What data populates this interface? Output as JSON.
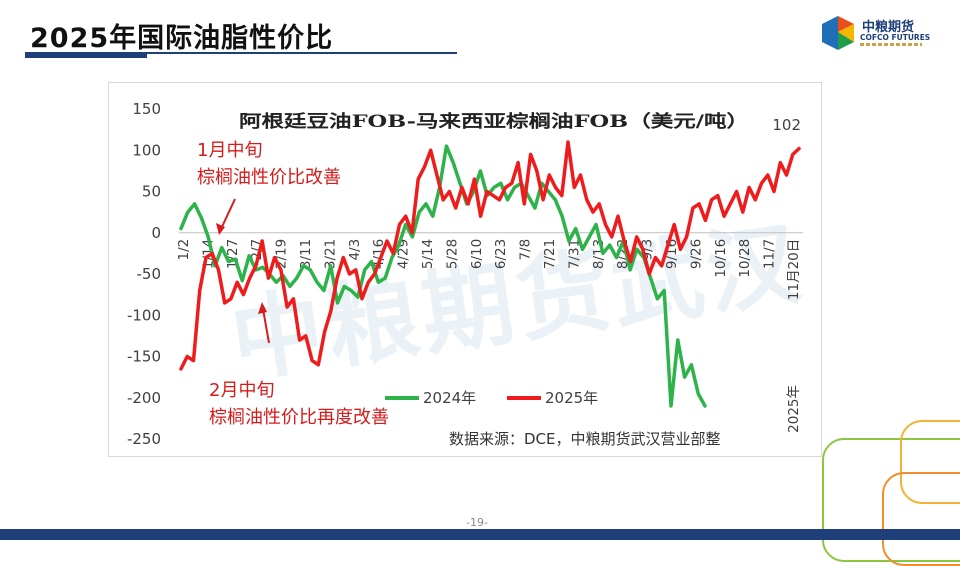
{
  "slide": {
    "title": "2025年国际油脂性价比",
    "page_number": "-19-"
  },
  "logo": {
    "cn": "中粮期货",
    "en": "COFCO FUTURES",
    "colors": [
      "#e94e1b",
      "#f7b500",
      "#1f9e4a",
      "#1f6fb8"
    ]
  },
  "colors": {
    "series_2024": "#2eb34a",
    "series_2025": "#ee1c1c",
    "annotation": "#d71a1a",
    "brand": "#1f3f7a"
  },
  "chart_data": {
    "type": "line",
    "title": "阿根廷豆油FOB-马来西亚棕榈油FOB（美元/吨）",
    "ylim": [
      -250,
      150
    ],
    "yticks": [
      150,
      100,
      50,
      0,
      -50,
      -100,
      -150,
      -200,
      -250
    ],
    "x_tick_labels": [
      "1/2",
      "1/14",
      "1/27",
      "2/7",
      "2/19",
      "3/11",
      "3/21",
      "4/3",
      "4/16",
      "4/29",
      "5/14",
      "5/28",
      "6/10",
      "6/23",
      "7/8",
      "7/21",
      "7/31",
      "8/13",
      "8/22",
      "9/3",
      "9/16",
      "9/26",
      "10/16",
      "10/28",
      "11/7",
      "11月20日"
    ],
    "year_label": "2025年",
    "last_value_label": "102",
    "series": [
      {
        "name": "2024年",
        "values": [
          5,
          25,
          35,
          18,
          -5,
          -40,
          -18,
          -35,
          -32,
          -58,
          -28,
          -45,
          -42,
          -50,
          -60,
          -52,
          -65,
          -55,
          -40,
          -45,
          -60,
          -70,
          -40,
          -85,
          -65,
          -70,
          -78,
          -45,
          -35,
          -60,
          -55,
          -30,
          -15,
          10,
          -5,
          25,
          35,
          20,
          55,
          105,
          85,
          60,
          35,
          50,
          75,
          45,
          55,
          60,
          40,
          55,
          60,
          45,
          30,
          60,
          50,
          40,
          20,
          -10,
          5,
          -20,
          -5,
          10,
          -25,
          -15,
          -30,
          -10,
          -45,
          -20,
          -30,
          -55,
          -80,
          -70,
          -210,
          -130,
          -175,
          -160,
          -195,
          -210
        ]
      },
      {
        "name": "2025年",
        "values": [
          -165,
          -150,
          -155,
          -70,
          -30,
          -25,
          -45,
          -85,
          -80,
          -60,
          -75,
          -55,
          -40,
          -10,
          -55,
          -30,
          -45,
          -90,
          -80,
          -130,
          -125,
          -155,
          -160,
          -120,
          -95,
          -55,
          -30,
          -50,
          -45,
          -80,
          -60,
          -50,
          -30,
          -10,
          -25,
          10,
          20,
          0,
          65,
          80,
          100,
          70,
          40,
          50,
          30,
          55,
          35,
          65,
          20,
          50,
          45,
          40,
          55,
          60,
          85,
          35,
          95,
          75,
          40,
          70,
          55,
          45,
          110,
          55,
          70,
          40,
          25,
          35,
          10,
          -5,
          20,
          -10,
          -35,
          -5,
          -20,
          -50,
          -30,
          -40,
          -15,
          10,
          -20,
          -5,
          30,
          35,
          15,
          40,
          45,
          20,
          35,
          50,
          25,
          55,
          40,
          60,
          70,
          50,
          85,
          70,
          95,
          102
        ]
      }
    ],
    "annotations": [
      {
        "line1": "1月中旬",
        "line2": "棕榈油性价比改善"
      },
      {
        "line1": "2月中旬",
        "line2": "棕榈油性价比再度改善"
      }
    ],
    "source": "数据来源：DCE，中粮期货武汉营业部整",
    "watermark": "中粮期货武汉",
    "legend_position": "bottom"
  }
}
